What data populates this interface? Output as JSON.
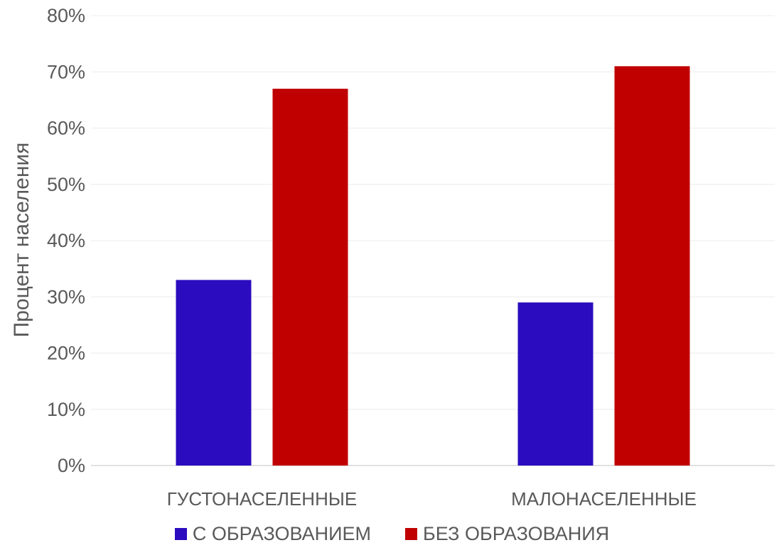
{
  "chart_data": {
    "type": "bar",
    "title": "",
    "xlabel": "",
    "ylabel": "Процент населения",
    "ylim": [
      0,
      80
    ],
    "y_ticks": [
      "0%",
      "10%",
      "20%",
      "30%",
      "40%",
      "50%",
      "60%",
      "70%",
      "80%"
    ],
    "categories": [
      "ГУСТОНАСЕЛЕННЫЕ",
      "МАЛОНАСЕЛЕННЫЕ"
    ],
    "series": [
      {
        "name": "С ОБРАЗОВАНИЕМ",
        "color": "#2B0CBF",
        "values": [
          33,
          29
        ]
      },
      {
        "name": "БЕЗ ОБРАЗОВАНИЯ",
        "color": "#C00000",
        "values": [
          67,
          71
        ]
      }
    ],
    "grid": true,
    "legend_position": "bottom"
  }
}
